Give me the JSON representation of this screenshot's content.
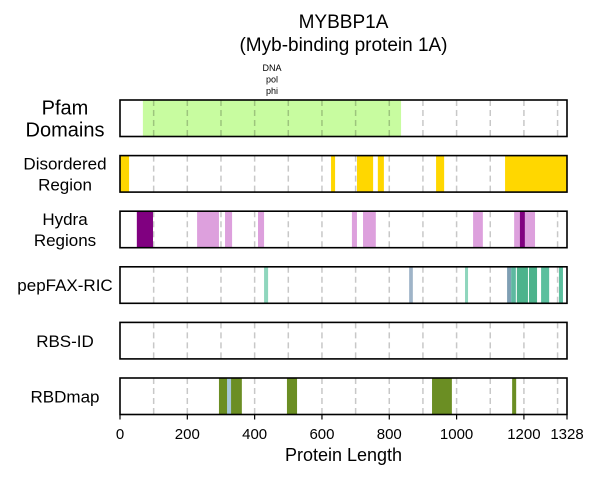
{
  "chart_data": {
    "type": "bar",
    "title": "MYBBP1A",
    "subtitle": "(Myb-binding protein 1A)",
    "xlabel": "Protein Length",
    "xlim": [
      0,
      1328
    ],
    "xticks": [
      0,
      200,
      400,
      600,
      800,
      1000,
      1200,
      1328
    ],
    "grid": true,
    "grid_step": 100,
    "tracks": [
      {
        "label_lines": [
          "Pfam",
          "Domains"
        ],
        "color": "#c8fca0",
        "segments": [
          {
            "start": 68,
            "end": 835,
            "color": "#c8fca0",
            "label_lines": [
              "DNA",
              "pol",
              "phi"
            ]
          }
        ]
      },
      {
        "label_lines": [
          "Disordered",
          "Region"
        ],
        "color": "#ffd700",
        "segments": [
          {
            "start": 0,
            "end": 27
          },
          {
            "start": 627,
            "end": 639
          },
          {
            "start": 704,
            "end": 752
          },
          {
            "start": 766,
            "end": 784
          },
          {
            "start": 939,
            "end": 963
          },
          {
            "start": 1144,
            "end": 1328
          }
        ]
      },
      {
        "label_lines": [
          "Hydra",
          "Regions"
        ],
        "color": "#dda0dd",
        "segments": [
          {
            "start": 50,
            "end": 98,
            "color": "#800080"
          },
          {
            "start": 229,
            "end": 294
          },
          {
            "start": 312,
            "end": 333
          },
          {
            "start": 410,
            "end": 428
          },
          {
            "start": 689,
            "end": 704
          },
          {
            "start": 722,
            "end": 760
          },
          {
            "start": 1049,
            "end": 1078
          },
          {
            "start": 1171,
            "end": 1188
          },
          {
            "start": 1188,
            "end": 1203,
            "color": "#800080"
          },
          {
            "start": 1203,
            "end": 1233
          }
        ]
      },
      {
        "label_lines": [
          "pepFAX-RIC"
        ],
        "color": "#4db38c",
        "segments": [
          {
            "start": 428,
            "end": 440,
            "color": "#8fd6bd"
          },
          {
            "start": 859,
            "end": 870,
            "color": "#9fb4c8"
          },
          {
            "start": 1025,
            "end": 1034,
            "color": "#8fd6bd"
          },
          {
            "start": 1150,
            "end": 1162,
            "color": "#7f9fb4"
          },
          {
            "start": 1162,
            "end": 1176,
            "color": "#5db9a0"
          },
          {
            "start": 1179,
            "end": 1212
          },
          {
            "start": 1215,
            "end": 1239
          },
          {
            "start": 1251,
            "end": 1275,
            "color": "#5bbf9e"
          },
          {
            "start": 1304,
            "end": 1316,
            "color": "#5bbf9e"
          }
        ]
      },
      {
        "label_lines": [
          "RBS-ID"
        ],
        "color": "#6b8e23",
        "segments": []
      },
      {
        "label_lines": [
          "RBDmap"
        ],
        "color": "#6b8e23",
        "segments": [
          {
            "start": 294,
            "end": 362
          },
          {
            "start": 318,
            "end": 330,
            "color": "#a6c8dc"
          },
          {
            "start": 496,
            "end": 526
          },
          {
            "start": 927,
            "end": 986
          },
          {
            "start": 1165,
            "end": 1177
          }
        ]
      }
    ]
  }
}
